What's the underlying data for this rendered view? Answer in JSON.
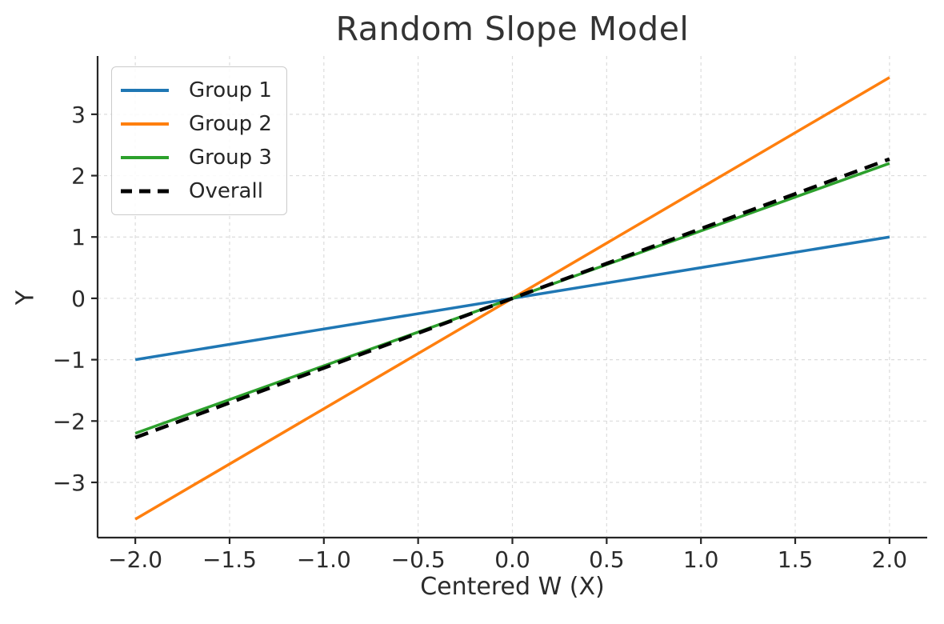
{
  "chart_data": {
    "type": "line",
    "title": "Random Slope Model",
    "xlabel": "Centered W (X)",
    "ylabel": "Y",
    "xlim": [
      -2.2,
      2.2
    ],
    "ylim": [
      -3.9,
      3.95
    ],
    "xticks": {
      "values": [
        -2.0,
        -1.5,
        -1.0,
        -0.5,
        0.0,
        0.5,
        1.0,
        1.5,
        2.0
      ],
      "labels": [
        "−2.0",
        "−1.5",
        "−1.0",
        "−0.5",
        "0.0",
        "0.5",
        "1.0",
        "1.5",
        "2.0"
      ]
    },
    "yticks": {
      "values": [
        -3,
        -2,
        -1,
        0,
        1,
        2,
        3
      ],
      "labels": [
        "−3",
        "−2",
        "−1",
        "0",
        "1",
        "2",
        "3"
      ]
    },
    "grid": {
      "visible": true,
      "style": "dashed",
      "color": "#dcdcdc"
    },
    "legend": {
      "position": "upper left",
      "entries": [
        "Group 1",
        "Group 2",
        "Group 3",
        "Overall"
      ]
    },
    "series": [
      {
        "name": "Group 1",
        "color": "#1f77b4",
        "line_style": "solid",
        "x": [
          -2,
          2
        ],
        "y": [
          -1.0,
          1.0
        ]
      },
      {
        "name": "Group 2",
        "color": "#ff7f0e",
        "line_style": "solid",
        "x": [
          -2,
          2
        ],
        "y": [
          -3.6,
          3.6
        ]
      },
      {
        "name": "Group 3",
        "color": "#2ca02c",
        "line_style": "solid",
        "x": [
          -2,
          2
        ],
        "y": [
          -2.2,
          2.2
        ]
      },
      {
        "name": "Overall",
        "color": "#000000",
        "line_style": "dashed",
        "x": [
          -2,
          2
        ],
        "y": [
          -2.27,
          2.27
        ]
      }
    ],
    "axis_color": "#262626"
  }
}
